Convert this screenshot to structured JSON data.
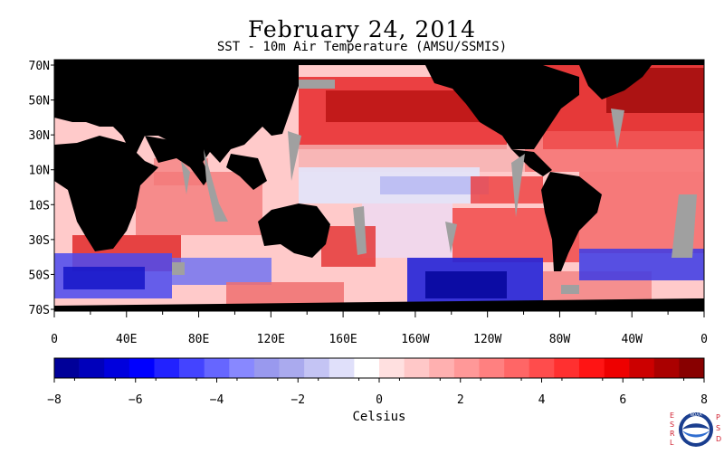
{
  "header": {
    "title": "February 24, 2014",
    "subtitle": "SST - 10m Air Temperature (AMSU/SSMIS)"
  },
  "map": {
    "lat_labels": [
      "70N",
      "50N",
      "30N",
      "10N",
      "10S",
      "30S",
      "50S",
      "70S"
    ],
    "lon_labels": [
      "0",
      "40E",
      "80E",
      "120E",
      "160E",
      "160W",
      "120W",
      "80W",
      "40W",
      "0"
    ],
    "land_color": "#000000",
    "missing_data_color": "#a0a0a0"
  },
  "colorbar": {
    "range": [
      -8,
      8
    ],
    "tick_labels": [
      "−8",
      "−6",
      "−4",
      "−2",
      "0",
      "2",
      "4",
      "6",
      "8"
    ],
    "unit_label": "Celsius",
    "colors": [
      "#000099",
      "#0000bb",
      "#0000dd",
      "#0000ff",
      "#2222ff",
      "#4444ff",
      "#6666ff",
      "#8888ff",
      "#9999ee",
      "#aaaaee",
      "#c4c4f4",
      "#e0e0fa",
      "#ffffff",
      "#ffe0e0",
      "#ffc8c8",
      "#ffb0b0",
      "#ff9898",
      "#ff8080",
      "#ff6666",
      "#ff4c4c",
      "#ff3030",
      "#ff1414",
      "#ee0000",
      "#cc0000",
      "#aa0000",
      "#880000"
    ]
  },
  "logo": {
    "left_text": "ESRL",
    "right_text": "PSD",
    "emblem_text": "NOAA"
  }
}
